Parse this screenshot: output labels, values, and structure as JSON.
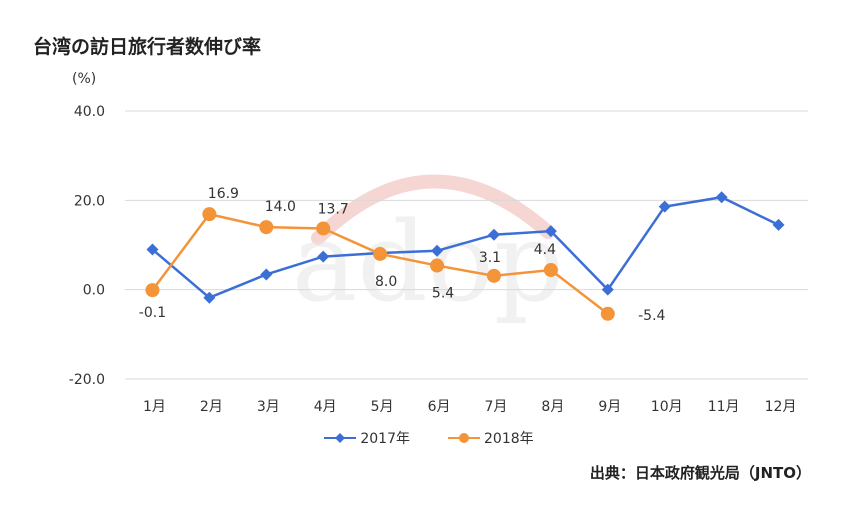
{
  "title": "台湾の訪日旅行者数伸び率",
  "unit_label": "(%)",
  "source": "出典：日本政府観光局（JNTO）",
  "watermark": "adop",
  "colors": {
    "series_2017": "#3c6fd6",
    "series_2018": "#f39439",
    "grid": "#d9d9d9"
  },
  "chart_data": {
    "type": "line",
    "title": "台湾の訪日旅行者数伸び率",
    "ylabel": "(%)",
    "xlabel": "",
    "categories": [
      "1月",
      "2月",
      "3月",
      "4月",
      "5月",
      "6月",
      "7月",
      "8月",
      "9月",
      "10月",
      "11月",
      "12月"
    ],
    "ylim": [
      -20,
      40
    ],
    "yticks": [
      "-20.0",
      "0.0",
      "20.0",
      "40.0"
    ],
    "legend_position": "bottom",
    "grid": true,
    "series": [
      {
        "name": "2017年",
        "marker": "diamond",
        "values": [
          9.0,
          -1.8,
          3.4,
          7.4,
          8.2,
          8.7,
          12.3,
          13.1,
          0.0,
          18.6,
          20.7,
          14.5
        ]
      },
      {
        "name": "2018年",
        "marker": "circle",
        "values": [
          -0.1,
          16.9,
          14.0,
          13.7,
          8.0,
          5.4,
          3.1,
          4.4,
          -5.4,
          null,
          null,
          null
        ],
        "data_labels": [
          "-0.1",
          "16.9",
          "14.0",
          "13.7",
          "8.0",
          "5.4",
          "3.1",
          "4.4",
          "-5.4"
        ]
      }
    ]
  }
}
